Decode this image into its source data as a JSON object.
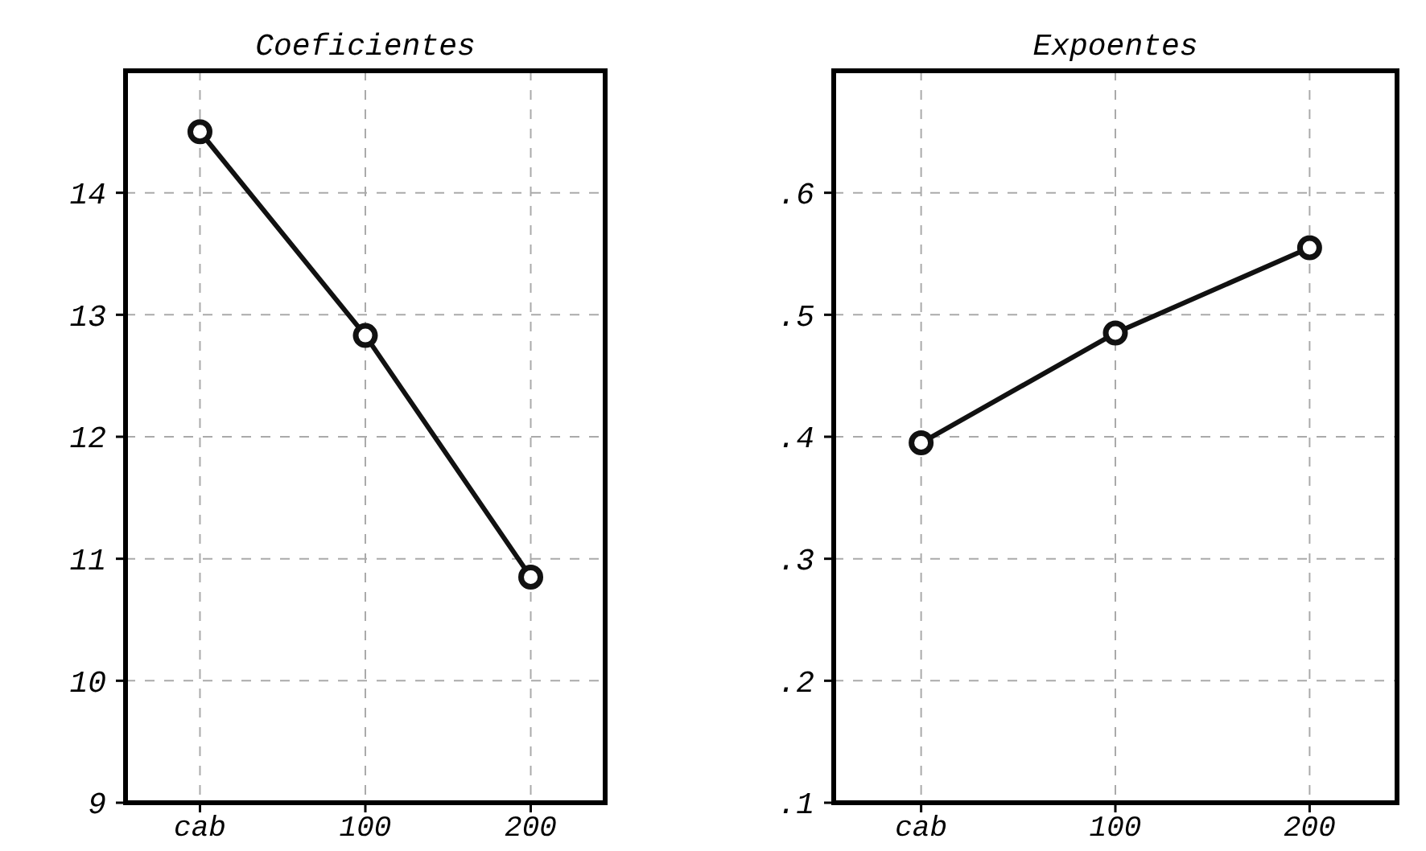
{
  "chart_data": [
    {
      "type": "line",
      "title": "Coeficientes",
      "categories": [
        "cab",
        "100",
        "200"
      ],
      "series": [
        {
          "color": "#111111",
          "values": [
            14.5,
            12.83,
            10.85
          ]
        }
      ],
      "ylim": [
        9,
        15
      ],
      "yticks": [
        9,
        10,
        11,
        12,
        13,
        14
      ],
      "grid": true,
      "marker": "circle",
      "line_style": "solid"
    },
    {
      "type": "line",
      "title": "Expoentes",
      "categories": [
        "cab",
        "100",
        "200"
      ],
      "series": [
        {
          "color": "#111111",
          "values": [
            0.395,
            0.485,
            0.555
          ]
        }
      ],
      "ylim": [
        0.1,
        0.7
      ],
      "yticks": [
        {
          "value": 0.1,
          "label": ".1"
        },
        {
          "value": 0.2,
          "label": ".2"
        },
        {
          "value": 0.3,
          "label": ".3"
        },
        {
          "value": 0.4,
          "label": ".4"
        },
        {
          "value": 0.5,
          "label": ".5"
        },
        {
          "value": 0.6,
          "label": ".6"
        }
      ],
      "grid": true,
      "marker": "circle",
      "line_style": "solid"
    }
  ]
}
